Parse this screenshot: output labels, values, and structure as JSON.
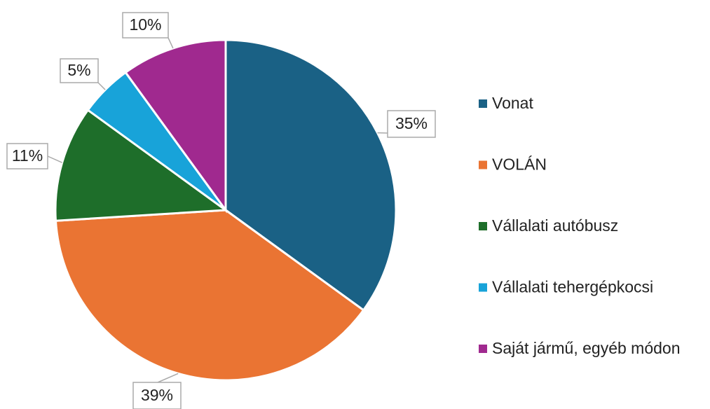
{
  "chart_data": {
    "type": "pie",
    "categories": [
      "Vonat",
      "VOLÁN",
      "Vállalati autóbusz",
      "Vállalati tehergépkocsi",
      "Saját jármű, egyéb módon"
    ],
    "values": [
      35,
      39,
      11,
      5,
      10
    ],
    "value_labels": [
      "35%",
      "39%",
      "11%",
      "5%",
      "10%"
    ],
    "colors": [
      "#1a6185",
      "#ea7433",
      "#1e6e2a",
      "#18a3d9",
      "#a0298f"
    ],
    "legend": "right"
  }
}
